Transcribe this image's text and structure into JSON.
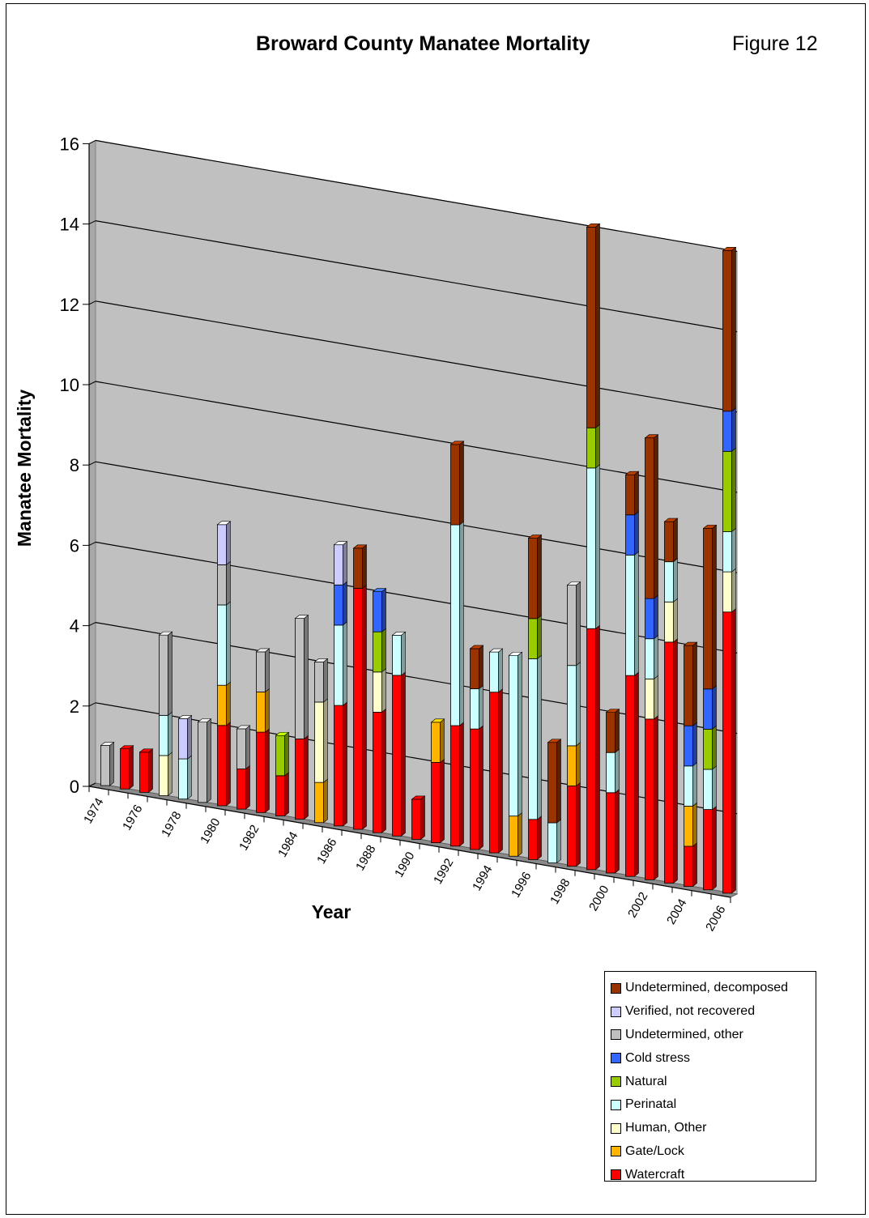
{
  "header": {
    "title": "Broward County Manatee Mortality",
    "figure_label": "Figure 12"
  },
  "chart_data": {
    "type": "bar",
    "stacked": true,
    "three_d": true,
    "title": "Broward County Manatee Mortality",
    "xlabel": "Year",
    "ylabel": "Manatee Mortality",
    "ylim": [
      0,
      16
    ],
    "yticks": [
      0,
      2,
      4,
      6,
      8,
      10,
      12,
      14,
      16
    ],
    "grid": true,
    "legend_position": "bottom-right",
    "categories": [
      "1974",
      "1975",
      "1976",
      "1977",
      "1978",
      "1979",
      "1980",
      "1981",
      "1982",
      "1983",
      "1984",
      "1985",
      "1986",
      "1987",
      "1988",
      "1989",
      "1990",
      "1991",
      "1992",
      "1993",
      "1994",
      "1995",
      "1996",
      "1997",
      "1998",
      "1999",
      "2000",
      "2001",
      "2002",
      "2003",
      "2004",
      "2005",
      "2006"
    ],
    "tick_labels": [
      "1974",
      "1976",
      "1978",
      "1980",
      "1982",
      "1984",
      "1986",
      "1988",
      "1990",
      "1992",
      "1994",
      "1996",
      "1998",
      "2000",
      "2002",
      "2004",
      "2006"
    ],
    "series": [
      {
        "name": "Watercraft",
        "color": "#ff0000",
        "values": [
          0,
          1,
          1,
          0,
          0,
          0,
          2,
          1,
          2,
          1,
          2,
          0,
          3,
          6,
          3,
          4,
          1,
          2,
          3,
          3,
          4,
          0,
          1,
          0,
          2,
          6,
          2,
          5,
          4,
          6,
          1,
          2,
          7
        ]
      },
      {
        "name": "Gate/Lock",
        "color": "#ffb400",
        "values": [
          0,
          0,
          0,
          0,
          0,
          0,
          1,
          0,
          1,
          0,
          0,
          1,
          0,
          0,
          0,
          0,
          0,
          1,
          0,
          0,
          0,
          1,
          0,
          0,
          1,
          0,
          0,
          0,
          0,
          0,
          1,
          0,
          0
        ]
      },
      {
        "name": "Human, Other",
        "color": "#ffffcc",
        "values": [
          0,
          0,
          0,
          1,
          0,
          0,
          0,
          0,
          0,
          0,
          0,
          2,
          0,
          0,
          1,
          0,
          0,
          0,
          0,
          0,
          0,
          0,
          0,
          0,
          0,
          0,
          0,
          0,
          1,
          1,
          0,
          0,
          1
        ]
      },
      {
        "name": "Perinatal",
        "color": "#ccffff",
        "values": [
          0,
          0,
          0,
          1,
          1,
          0,
          2,
          0,
          0,
          0,
          0,
          0,
          2,
          0,
          0,
          1,
          0,
          0,
          5,
          1,
          1,
          4,
          4,
          1,
          2,
          4,
          1,
          3,
          1,
          1,
          1,
          1,
          1
        ]
      },
      {
        "name": "Natural",
        "color": "#99cc00",
        "values": [
          0,
          0,
          0,
          0,
          0,
          0,
          0,
          0,
          0,
          1,
          0,
          0,
          0,
          0,
          1,
          0,
          0,
          0,
          0,
          0,
          0,
          0,
          1,
          0,
          0,
          1,
          0,
          0,
          0,
          0,
          0,
          1,
          2
        ]
      },
      {
        "name": "Cold stress",
        "color": "#3366ff",
        "values": [
          0,
          0,
          0,
          0,
          0,
          0,
          0,
          0,
          0,
          0,
          0,
          0,
          1,
          0,
          1,
          0,
          0,
          0,
          0,
          0,
          0,
          0,
          0,
          0,
          0,
          0,
          0,
          1,
          1,
          0,
          1,
          1,
          1
        ]
      },
      {
        "name": "Undetermined, other",
        "color": "#c0c0c0",
        "values": [
          1,
          0,
          0,
          2,
          0,
          2,
          1,
          1,
          1,
          0,
          3,
          1,
          0,
          0,
          0,
          0,
          0,
          0,
          0,
          0,
          0,
          0,
          0,
          0,
          2,
          0,
          0,
          0,
          0,
          0,
          0,
          0,
          0
        ]
      },
      {
        "name": "Verified, not recovered",
        "color": "#ccccff",
        "values": [
          0,
          0,
          0,
          0,
          1,
          0,
          1,
          0,
          0,
          0,
          0,
          0,
          1,
          0,
          0,
          0,
          0,
          0,
          0,
          0,
          0,
          0,
          0,
          0,
          0,
          0,
          0,
          0,
          0,
          0,
          0,
          0,
          0
        ]
      },
      {
        "name": "Undetermined, decomposed",
        "color": "#993300",
        "values": [
          0,
          0,
          0,
          0,
          0,
          0,
          0,
          0,
          0,
          0,
          0,
          0,
          0,
          1,
          0,
          0,
          0,
          0,
          2,
          1,
          0,
          0,
          2,
          2,
          0,
          5,
          1,
          1,
          4,
          1,
          2,
          4,
          4
        ]
      }
    ]
  },
  "legend": {
    "items": [
      {
        "label": "Undetermined, decomposed",
        "color": "#993300"
      },
      {
        "label": "Verified, not recovered",
        "color": "#ccccff"
      },
      {
        "label": "Undetermined, other",
        "color": "#c0c0c0"
      },
      {
        "label": "Cold stress",
        "color": "#3366ff"
      },
      {
        "label": "Natural",
        "color": "#99cc00"
      },
      {
        "label": "Perinatal",
        "color": "#ccffff"
      },
      {
        "label": "Human, Other",
        "color": "#ffffcc"
      },
      {
        "label": "Gate/Lock",
        "color": "#ffb400"
      },
      {
        "label": "Watercraft",
        "color": "#ff0000"
      }
    ]
  }
}
